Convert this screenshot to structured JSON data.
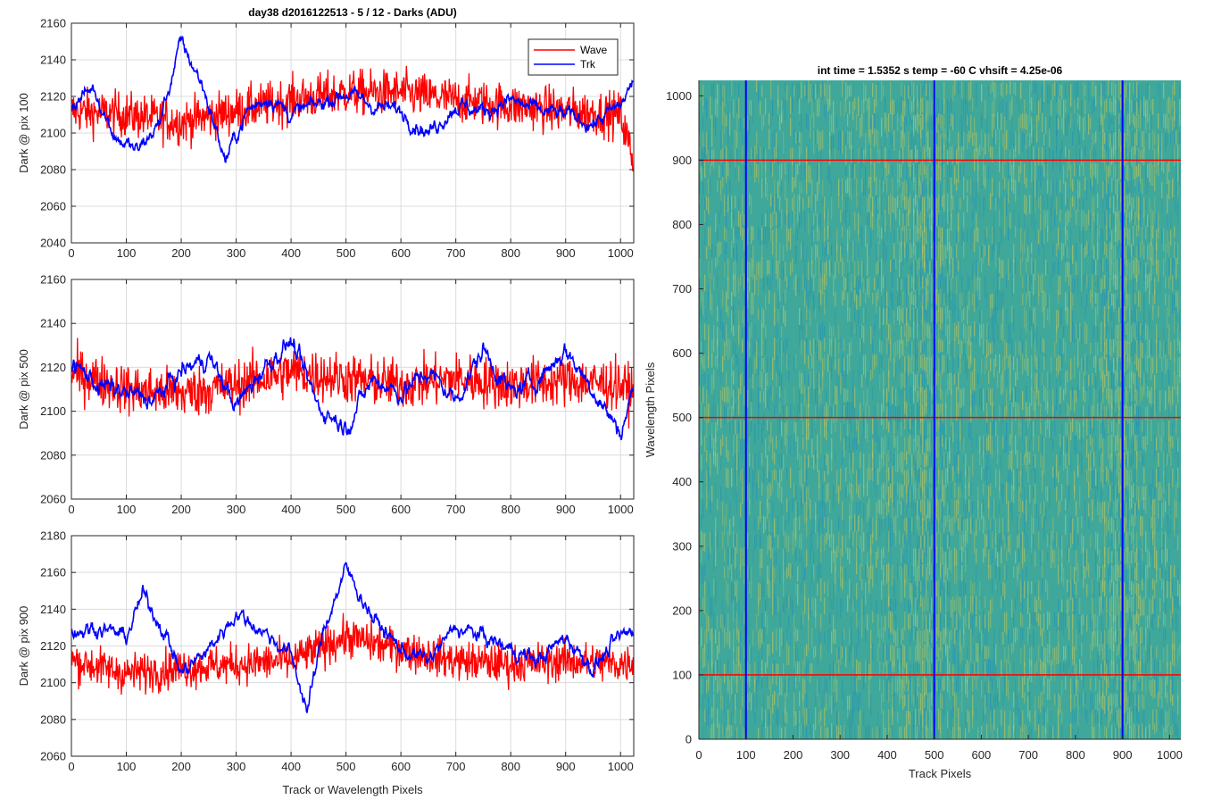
{
  "figure": {
    "title": "day38 d2016122513 - 5 / 12 - Darks (ADU)",
    "background": "#ffffff"
  },
  "colors": {
    "wave": "#ff0000",
    "trk": "#0000ff",
    "grid": "#dcdcdc",
    "axis": "#262626",
    "image_base": "#3fa89a",
    "image_bright": "#c9c85a",
    "image_dark": "#1e8fb8"
  },
  "chart_data": [
    {
      "type": "line",
      "ylabel": "Dark @ pix 100",
      "xlabel": "",
      "xlim": [
        0,
        1024
      ],
      "ylim": [
        2040,
        2160
      ],
      "xticks": [
        0,
        100,
        200,
        300,
        400,
        500,
        600,
        700,
        800,
        900,
        1000
      ],
      "yticks": [
        2040,
        2060,
        2080,
        2100,
        2120,
        2140,
        2160
      ],
      "grid": true,
      "legend": {
        "position": "top-right",
        "entries": [
          "Wave",
          "Trk"
        ]
      },
      "series": [
        {
          "name": "Wave",
          "color": "#ff0000",
          "anchors_x": [
            0,
            100,
            200,
            300,
            400,
            500,
            600,
            700,
            800,
            900,
            1000,
            1023
          ],
          "anchors_y": [
            2112,
            2110,
            2106,
            2112,
            2118,
            2122,
            2122,
            2118,
            2115,
            2112,
            2110,
            2085
          ],
          "amplitude": 16
        },
        {
          "name": "Trk",
          "color": "#0000ff",
          "anchors_x": [
            0,
            40,
            80,
            120,
            160,
            200,
            240,
            280,
            320,
            360,
            400,
            450,
            500,
            550,
            600,
            650,
            700,
            750,
            800,
            850,
            900,
            950,
            1000,
            1023
          ],
          "anchors_y": [
            2115,
            2125,
            2098,
            2090,
            2105,
            2150,
            2125,
            2085,
            2112,
            2120,
            2110,
            2116,
            2122,
            2115,
            2112,
            2100,
            2115,
            2112,
            2118,
            2112,
            2110,
            2105,
            2115,
            2128
          ],
          "amplitude": 6
        }
      ]
    },
    {
      "type": "line",
      "ylabel": "Dark @ pix 500",
      "xlabel": "",
      "xlim": [
        0,
        1024
      ],
      "ylim": [
        2060,
        2160
      ],
      "xticks": [
        0,
        100,
        200,
        300,
        400,
        500,
        600,
        700,
        800,
        900,
        1000
      ],
      "yticks": [
        2060,
        2080,
        2100,
        2120,
        2140,
        2160
      ],
      "grid": true,
      "series": [
        {
          "name": "Wave",
          "color": "#ff0000",
          "anchors_x": [
            0,
            100,
            200,
            300,
            400,
            500,
            600,
            700,
            800,
            900,
            1000,
            1023
          ],
          "anchors_y": [
            2118,
            2110,
            2108,
            2112,
            2118,
            2115,
            2112,
            2115,
            2112,
            2114,
            2112,
            2108
          ],
          "amplitude": 15
        },
        {
          "name": "Trk",
          "color": "#0000ff",
          "anchors_x": [
            0,
            50,
            100,
            150,
            200,
            250,
            300,
            350,
            400,
            450,
            500,
            550,
            600,
            650,
            700,
            750,
            800,
            850,
            900,
            950,
            1000,
            1023
          ],
          "anchors_y": [
            2122,
            2112,
            2108,
            2105,
            2118,
            2125,
            2102,
            2120,
            2132,
            2102,
            2093,
            2115,
            2108,
            2118,
            2105,
            2128,
            2108,
            2115,
            2128,
            2110,
            2090,
            2110
          ],
          "amplitude": 6
        }
      ]
    },
    {
      "type": "line",
      "ylabel": "Dark @ pix 900",
      "xlabel": "Track or Wavelength Pixels",
      "xlim": [
        0,
        1024
      ],
      "ylim": [
        2060,
        2180
      ],
      "xticks": [
        0,
        100,
        200,
        300,
        400,
        500,
        600,
        700,
        800,
        900,
        1000
      ],
      "yticks": [
        2060,
        2080,
        2100,
        2120,
        2140,
        2160,
        2180
      ],
      "grid": true,
      "series": [
        {
          "name": "Wave",
          "color": "#ff0000",
          "anchors_x": [
            0,
            100,
            200,
            300,
            400,
            500,
            600,
            700,
            800,
            900,
            1000,
            1023
          ],
          "anchors_y": [
            2112,
            2105,
            2108,
            2110,
            2112,
            2125,
            2118,
            2112,
            2110,
            2112,
            2110,
            2112
          ],
          "amplitude": 14
        },
        {
          "name": "Trk",
          "color": "#0000ff",
          "anchors_x": [
            0,
            50,
            100,
            130,
            170,
            200,
            250,
            300,
            350,
            400,
            430,
            460,
            500,
            550,
            600,
            650,
            700,
            750,
            800,
            850,
            900,
            950,
            1000,
            1023
          ],
          "anchors_y": [
            2128,
            2130,
            2125,
            2148,
            2128,
            2105,
            2118,
            2138,
            2128,
            2115,
            2085,
            2130,
            2162,
            2135,
            2118,
            2112,
            2130,
            2125,
            2118,
            2112,
            2125,
            2108,
            2125,
            2128
          ],
          "amplitude": 6
        }
      ]
    },
    {
      "type": "heatmap",
      "title": "int time = 1.5352 s    temp = -60 C    vhsift = 4.25e-06",
      "xlabel": "Track Pixels",
      "ylabel": "Wavelength Pixels",
      "xlim": [
        0,
        1024
      ],
      "ylim": [
        0,
        1024
      ],
      "xticks": [
        0,
        100,
        200,
        300,
        400,
        500,
        600,
        700,
        800,
        900,
        1000
      ],
      "yticks": [
        0,
        100,
        200,
        300,
        400,
        500,
        600,
        700,
        800,
        900,
        1000
      ],
      "grid": false,
      "overlay_vertical_lines": {
        "color": "#0000ff",
        "x": [
          100,
          500,
          900
        ]
      },
      "overlay_horizontal_lines": {
        "color": "#ff0000",
        "y": [
          100,
          500,
          900
        ]
      },
      "bright_bands_x": [
        480,
        900
      ]
    }
  ]
}
